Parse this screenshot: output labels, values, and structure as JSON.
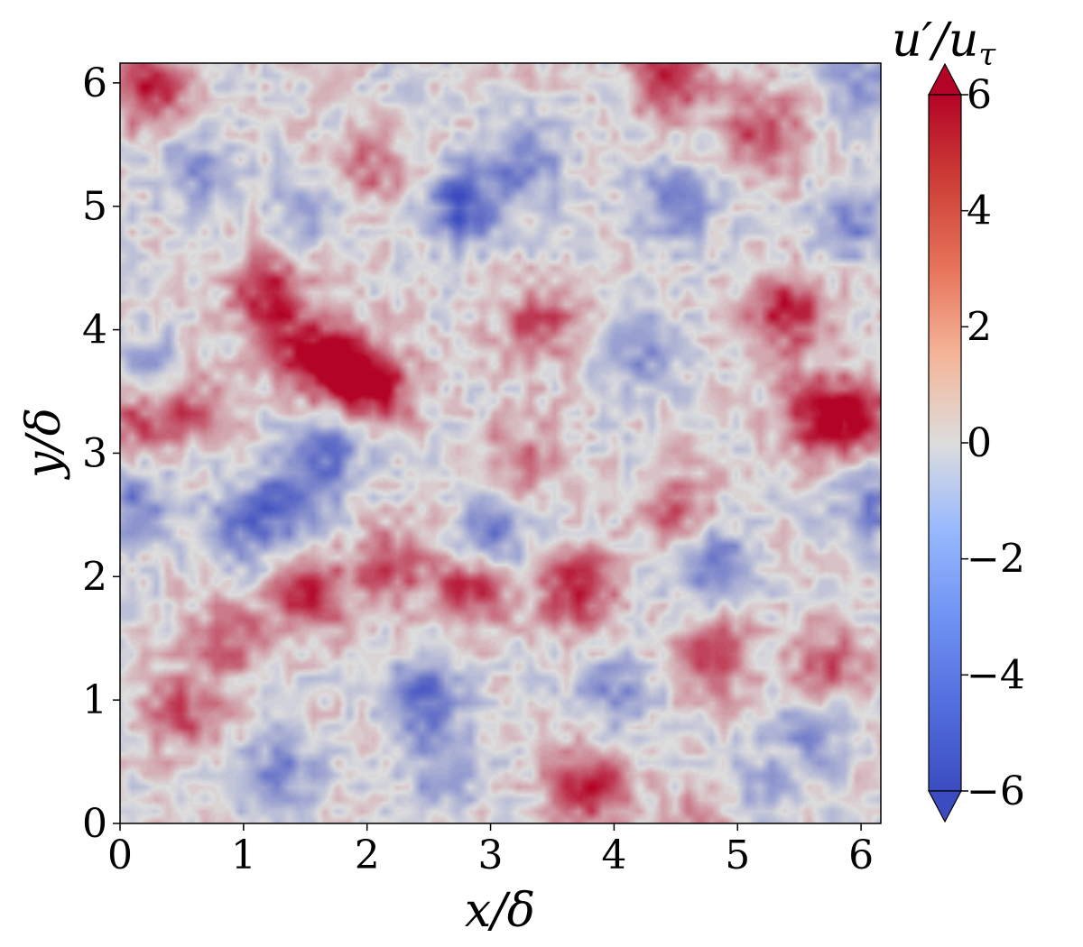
{
  "chart_data": {
    "type": "heatmap",
    "xlabel": "x/δ",
    "ylabel": "y/δ",
    "colorbar_label": "u′/u_τ",
    "colorbar_label_main": "u′/u",
    "colorbar_label_sub": "τ",
    "x_ticks": [
      {
        "value": 0,
        "label": "0"
      },
      {
        "value": 1,
        "label": "1"
      },
      {
        "value": 2,
        "label": "2"
      },
      {
        "value": 3,
        "label": "3"
      },
      {
        "value": 4,
        "label": "4"
      },
      {
        "value": 5,
        "label": "5"
      },
      {
        "value": 6,
        "label": "6"
      }
    ],
    "y_ticks": [
      {
        "value": 0,
        "label": "0"
      },
      {
        "value": 1,
        "label": "1"
      },
      {
        "value": 2,
        "label": "2"
      },
      {
        "value": 3,
        "label": "3"
      },
      {
        "value": 4,
        "label": "4"
      },
      {
        "value": 5,
        "label": "5"
      },
      {
        "value": 6,
        "label": "6"
      }
    ],
    "xlim": [
      0,
      6.16
    ],
    "ylim": [
      0,
      6.16
    ],
    "colorbar_range": [
      -6,
      6
    ],
    "colorbar_ticks": [
      {
        "value": 6,
        "label": "6"
      },
      {
        "value": 4,
        "label": "4"
      },
      {
        "value": 2,
        "label": "2"
      },
      {
        "value": 0,
        "label": "0"
      },
      {
        "value": -2,
        "label": "−2"
      },
      {
        "value": -4,
        "label": "−4"
      },
      {
        "value": -6,
        "label": "−6"
      }
    ],
    "colormap": "coolwarm",
    "colors": {
      "low": "#3b4cc0",
      "mid": "#dddddd",
      "high": "#b40426"
    },
    "grid": false,
    "features": [
      {
        "x": 1.8,
        "y": 3.65,
        "value": 5.5
      },
      {
        "x": 2.1,
        "y": 3.5,
        "value": 5.0
      },
      {
        "x": 1.5,
        "y": 3.85,
        "value": 4.5
      },
      {
        "x": 1.2,
        "y": 4.3,
        "value": 5.0
      },
      {
        "x": 3.7,
        "y": 1.9,
        "value": 5.5
      },
      {
        "x": 2.85,
        "y": 1.9,
        "value": 5.0
      },
      {
        "x": 1.55,
        "y": 1.85,
        "value": 5.0
      },
      {
        "x": 3.8,
        "y": 0.3,
        "value": 5.5
      },
      {
        "x": 5.4,
        "y": 4.15,
        "value": 5.5
      },
      {
        "x": 5.65,
        "y": 3.3,
        "value": 5.0
      },
      {
        "x": 6.0,
        "y": 3.3,
        "value": 4.5
      },
      {
        "x": 4.45,
        "y": 6.05,
        "value": 5.5
      },
      {
        "x": 0.25,
        "y": 5.95,
        "value": 5.0
      },
      {
        "x": 5.2,
        "y": 5.6,
        "value": 4.5
      },
      {
        "x": 4.8,
        "y": 1.35,
        "value": 4.5
      },
      {
        "x": 5.75,
        "y": 1.25,
        "value": 4.0
      },
      {
        "x": 0.5,
        "y": 3.4,
        "value": 4.0
      },
      {
        "x": 0.1,
        "y": 3.3,
        "value": 4.0
      },
      {
        "x": 3.4,
        "y": 4.05,
        "value": 4.0
      },
      {
        "x": 2.2,
        "y": 2.1,
        "value": 4.0
      },
      {
        "x": 0.5,
        "y": 0.9,
        "value": 4.0
      },
      {
        "x": 4.5,
        "y": 2.55,
        "value": 3.5
      },
      {
        "x": 3.25,
        "y": 2.95,
        "value": 3.0
      },
      {
        "x": 0.9,
        "y": 1.5,
        "value": 3.5
      },
      {
        "x": 2.0,
        "y": 5.3,
        "value": 3.0
      },
      {
        "x": 4.8,
        "y": 0.0,
        "value": 3.5
      },
      {
        "x": 2.8,
        "y": 5.0,
        "value": -5.5
      },
      {
        "x": 2.45,
        "y": 1.0,
        "value": -5.0
      },
      {
        "x": 1.4,
        "y": 2.6,
        "value": -4.5
      },
      {
        "x": 1.7,
        "y": 3.05,
        "value": -4.0
      },
      {
        "x": 0.25,
        "y": 3.6,
        "value": -4.0
      },
      {
        "x": 3.0,
        "y": 2.3,
        "value": -4.0
      },
      {
        "x": 4.8,
        "y": 2.1,
        "value": -4.0
      },
      {
        "x": 3.3,
        "y": 5.35,
        "value": -3.5
      },
      {
        "x": 6.1,
        "y": 2.6,
        "value": -3.5
      },
      {
        "x": 1.0,
        "y": 2.4,
        "value": -3.5
      },
      {
        "x": 0.1,
        "y": 2.6,
        "value": -3.5
      },
      {
        "x": 4.5,
        "y": 5.0,
        "value": -3.5
      },
      {
        "x": 5.95,
        "y": 4.9,
        "value": -3.5
      },
      {
        "x": 1.3,
        "y": 0.4,
        "value": -3.5
      },
      {
        "x": 5.6,
        "y": 0.75,
        "value": -3.0
      },
      {
        "x": 4.0,
        "y": 1.05,
        "value": -3.0
      },
      {
        "x": 5.1,
        "y": 0.2,
        "value": -3.0
      },
      {
        "x": 0.6,
        "y": 5.3,
        "value": -3.0
      },
      {
        "x": 4.2,
        "y": 3.8,
        "value": -3.0
      },
      {
        "x": 6.0,
        "y": 6.0,
        "value": -2.5
      },
      {
        "x": 2.6,
        "y": 0.4,
        "value": -2.5
      },
      {
        "x": 1.55,
        "y": 5.0,
        "value": -2.5
      }
    ]
  }
}
